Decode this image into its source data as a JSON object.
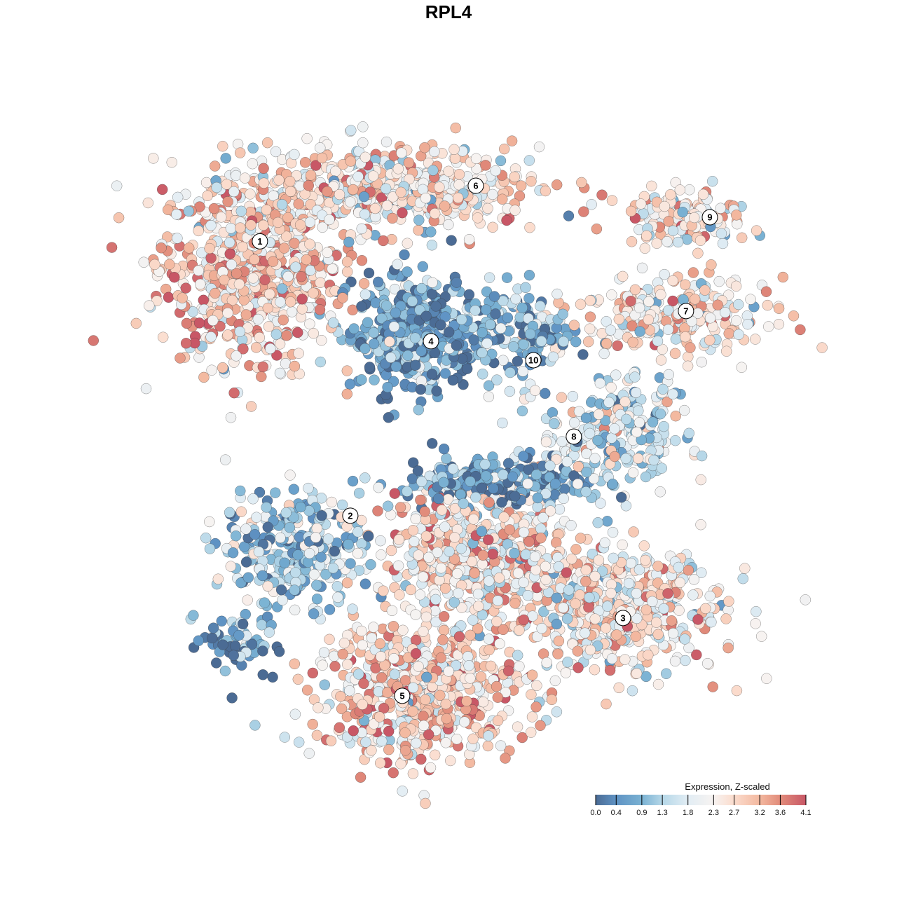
{
  "chart_data": {
    "type": "scatter",
    "title": "RPL4",
    "xlabel": "",
    "ylabel": "",
    "xlim": [
      -12,
      12
    ],
    "ylim": [
      -12,
      12
    ],
    "grid": false,
    "color_variable": "Expression, Z-scaled",
    "color_range": [
      0.0,
      4.1
    ],
    "legend": {
      "title": "Expression, Z-scaled",
      "placement": "bottom-right",
      "ticks": [
        "0.0",
        "0.4",
        "0.9",
        "1.3",
        "1.8",
        "2.3",
        "2.7",
        "3.2",
        "3.6",
        "4.1"
      ],
      "tick_values": [
        0.0,
        0.4,
        0.9,
        1.3,
        1.8,
        2.3,
        2.7,
        3.2,
        3.6,
        4.1
      ],
      "colors": [
        "#4b6b94",
        "#5f93c4",
        "#7ab2d3",
        "#b5d7e8",
        "#e2edf4",
        "#f7f3f1",
        "#fbdccd",
        "#f3b89f",
        "#e18b7a",
        "#c85766"
      ]
    },
    "clusters": [
      {
        "label": "1",
        "center": [
          -7.87,
          6.75
        ],
        "sd": [
          2.3,
          2.4
        ],
        "n": 700,
        "mean_expr": 2.7,
        "label_pos": [
          -7.59,
          7.69
        ]
      },
      {
        "label": "6",
        "center": [
          -2.71,
          9.64
        ],
        "sd": [
          3.6,
          1.05
        ],
        "n": 500,
        "mean_expr": 2.4,
        "label_pos": [
          0.36,
          9.77
        ]
      },
      {
        "label": "4",
        "center": [
          -1.94,
          4.13
        ],
        "sd": [
          1.55,
          1.45
        ],
        "n": 400,
        "mean_expr": 0.6,
        "label_pos": [
          -1.29,
          3.95
        ]
      },
      {
        "label": "10",
        "center": [
          1.94,
          4.39
        ],
        "sd": [
          1.3,
          1.05
        ],
        "n": 160,
        "mean_expr": 1.0,
        "label_pos": [
          2.48,
          3.24
        ]
      },
      {
        "label": "9",
        "center": [
          8.13,
          8.59
        ],
        "sd": [
          1.55,
          0.66
        ],
        "n": 150,
        "mean_expr": 2.4,
        "label_pos": [
          8.98,
          8.59
        ]
      },
      {
        "label": "7",
        "center": [
          7.61,
          4.9
        ],
        "sd": [
          2.3,
          0.92
        ],
        "n": 250,
        "mean_expr": 2.4,
        "label_pos": [
          8.1,
          5.08
        ]
      },
      {
        "label": "8",
        "center": [
          5.42,
          0.46
        ],
        "sd": [
          1.8,
          1.57
        ],
        "n": 250,
        "mean_expr": 1.6,
        "label_pos": [
          3.97,
          0.38
        ]
      },
      {
        "label": "2",
        "center": [
          -6.32,
          -3.74
        ],
        "sd": [
          1.8,
          1.44
        ],
        "n": 300,
        "mean_expr": 1.2,
        "label_pos": [
          -4.26,
          -2.58
        ]
      },
      {
        "label": "3",
        "center": [
          5.55,
          -6.13
        ],
        "sd": [
          2.6,
          1.57
        ],
        "n": 500,
        "mean_expr": 2.4,
        "label_pos": [
          5.78,
          -6.41
        ]
      },
      {
        "label": "5",
        "center": [
          -1.68,
          -9.11
        ],
        "sd": [
          2.6,
          1.84
        ],
        "n": 600,
        "mean_expr": 2.7,
        "label_pos": [
          -2.35,
          -9.32
        ]
      },
      {
        "label": "",
        "center": [
          0.39,
          -4.0
        ],
        "sd": [
          2.3,
          1.57
        ],
        "n": 500,
        "mean_expr": 2.6
      },
      {
        "label": "",
        "center": [
          0.9,
          -1.38
        ],
        "sd": [
          2.3,
          0.66
        ],
        "n": 220,
        "mean_expr": 0.6
      },
      {
        "label": "",
        "center": [
          -8.39,
          -7.41
        ],
        "sd": [
          0.9,
          0.8
        ],
        "n": 60,
        "mean_expr": 0.5
      }
    ]
  }
}
